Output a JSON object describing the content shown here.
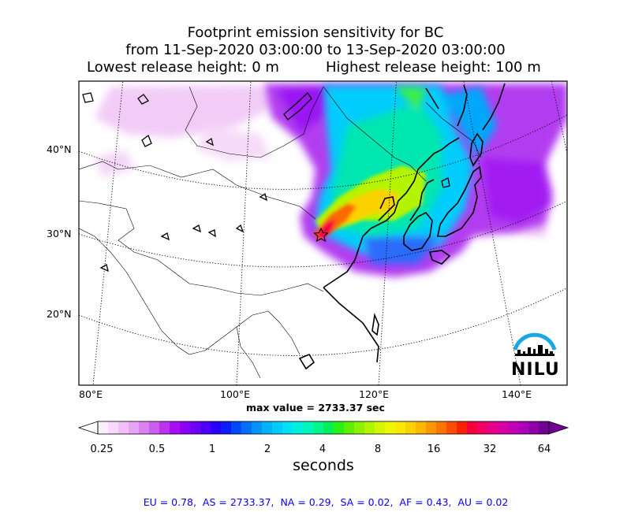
{
  "title": {
    "line1": "Footprint emission sensitivity for BC",
    "line2": "from 11-Sep-2020 03:00:00 to 13-Sep-2020 03:00:00",
    "line3_left": "Lowest release height: 0 m",
    "line3_right": "Highest release height: 100 m"
  },
  "map": {
    "lat_labels": [
      "40°N",
      "30°N",
      "20°N"
    ],
    "lon_labels": [
      "80°E",
      "100°E",
      "120°E",
      "140°E"
    ],
    "source_marker": "star",
    "logo_text": "NILU"
  },
  "max_value_text": "max value = 2733.37 sec",
  "colorbar": {
    "tick_labels": [
      "0.25",
      "0.5",
      "1",
      "2",
      "4",
      "8",
      "16",
      "32",
      "64"
    ],
    "units": "seconds",
    "colors": [
      "#fdeefd",
      "#f8d8fb",
      "#f0bff8",
      "#e7a3f5",
      "#da82f1",
      "#cd5def",
      "#bc33ef",
      "#a70ff2",
      "#8c02f4",
      "#6d01f7",
      "#4b00f8",
      "#2a00fa",
      "#0c1cfb",
      "#0048fb",
      "#0070fb",
      "#0094fb",
      "#00b2fc",
      "#00cbfb",
      "#00e0f5",
      "#00eedd",
      "#00f5b8",
      "#00f58c",
      "#00f05c",
      "#2bf018",
      "#5cf000",
      "#8af200",
      "#b2f400",
      "#d3f700",
      "#edf700",
      "#fae800",
      "#fbd100",
      "#fbb600",
      "#fb9700",
      "#fb7400",
      "#fb4c00",
      "#f72200",
      "#f5003a",
      "#f00066",
      "#e60088",
      "#d700a2",
      "#c400b4",
      "#ac00b8",
      "#9000a8",
      "#700094"
    ]
  },
  "stats_text": "EU = 0.78,  AS = 2733.37,  NA = 0.29,  SA = 0.02,  AF = 0.43,  AU = 0.02"
}
